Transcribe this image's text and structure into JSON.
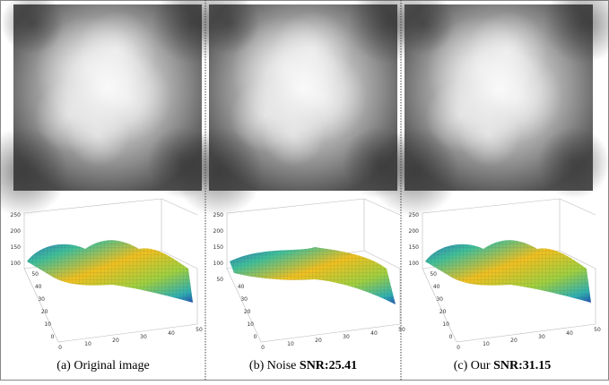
{
  "panels": [
    {
      "label": "(a) Original image",
      "metric": null,
      "plot": {
        "zticks": [
          250,
          200,
          150,
          100
        ],
        "yticks": [
          50,
          40,
          30,
          20,
          10,
          0
        ],
        "xticks": [
          0,
          10,
          20,
          30,
          40,
          50
        ]
      }
    },
    {
      "label": "(b) Noise",
      "metric": "SNR:25.41",
      "plot": {
        "zticks": [
          250,
          200,
          150,
          100,
          50
        ],
        "yticks": [
          40,
          30,
          20,
          10,
          0
        ],
        "xticks": [
          0,
          10,
          20,
          30,
          40,
          50
        ]
      }
    },
    {
      "label": "(c) Our",
      "metric": "SNR:31.15",
      "plot": {
        "zticks": [
          250,
          200,
          150,
          100
        ],
        "yticks": [
          50,
          40,
          30,
          20,
          10,
          0
        ],
        "xticks": [
          0,
          10,
          20,
          30,
          40,
          50
        ]
      }
    }
  ]
}
